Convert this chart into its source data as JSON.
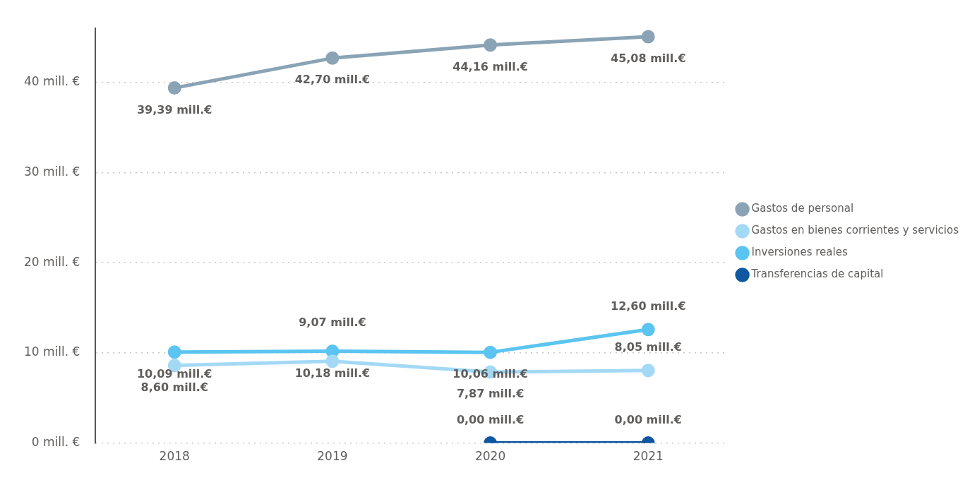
{
  "chart_data": {
    "type": "line",
    "categories": [
      "2018",
      "2019",
      "2020",
      "2021"
    ],
    "series": [
      {
        "name": "Gastos de personal",
        "color": "#8aa3b5",
        "values": [
          39.39,
          42.7,
          44.16,
          45.08
        ],
        "value_labels": [
          "39,39 mill.€",
          "42,70 mill.€",
          "44,16 mill.€",
          "45,08 mill.€"
        ]
      },
      {
        "name": "Gastos en bienes corrientes y servicios",
        "color": "#a3d9f5",
        "values": [
          8.6,
          9.07,
          7.87,
          8.05
        ],
        "value_labels": [
          "8,60 mill.€",
          "9,07 mill.€",
          "7,87 mill.€",
          "8,05 mill.€"
        ]
      },
      {
        "name": "Inversiones reales",
        "color": "#5bc4f0",
        "values": [
          10.09,
          10.18,
          10.06,
          12.6
        ],
        "value_labels": [
          "10,09 mill.€",
          "10,18 mill.€",
          "10,06 mill.€",
          "12,60 mill.€"
        ]
      },
      {
        "name": "Transferencias de capital",
        "color": "#0f57a0",
        "values": [
          null,
          null,
          0.0,
          0.0
        ],
        "value_labels": [
          null,
          null,
          "0,00 mill.€",
          "0,00 mill.€"
        ]
      }
    ],
    "ylim": [
      0,
      46
    ],
    "yticks": [
      {
        "value": 0,
        "label": "0 mill. €"
      },
      {
        "value": 10,
        "label": "10 mill. €"
      },
      {
        "value": 20,
        "label": "20 mill. €"
      },
      {
        "value": 30,
        "label": "30 mill. €"
      },
      {
        "value": 40,
        "label": "40 mill. €"
      }
    ],
    "grid": "y",
    "legend": "right",
    "marker": "circle",
    "line_style": "solid"
  }
}
